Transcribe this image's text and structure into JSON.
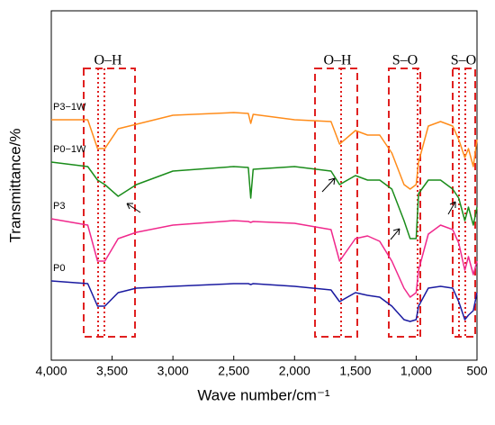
{
  "chart_data": {
    "type": "line",
    "xlabel": "Wave number/cm⁻¹",
    "ylabel": "Transmittance/%",
    "annotations": [
      "O–H",
      "O–H",
      "S–O",
      "S–O"
    ],
    "xlim": [
      4000,
      500
    ],
    "xticks": [
      {
        "value": 4000,
        "label": "4,000"
      },
      {
        "value": 3500,
        "label": "3,500"
      },
      {
        "value": 3000,
        "label": "3,000"
      },
      {
        "value": 2500,
        "label": "2,500"
      },
      {
        "value": 2000,
        "label": "2,000"
      },
      {
        "value": 1500,
        "label": "1,500"
      },
      {
        "value": 1000,
        "label": "1,000"
      },
      500
    ],
    "ylim": [
      0,
      388
    ],
    "x": [
      4000,
      3700,
      3620,
      3560,
      3450,
      3300,
      3000,
      2500,
      2380,
      2360,
      2340,
      2000,
      1700,
      1630,
      1500,
      1400,
      1300,
      1200,
      1100,
      1050,
      1000,
      980,
      900,
      800,
      700,
      650,
      600,
      570,
      530,
      500
    ],
    "series": [
      {
        "name": "P3−1W",
        "color": "#ff8c1a",
        "values": [
          267,
          267,
          235,
          235,
          257,
          262,
          272,
          275,
          274,
          263,
          273,
          267,
          265,
          240,
          255,
          250,
          250,
          230,
          195,
          190,
          195,
          220,
          260,
          265,
          260,
          245,
          225,
          235,
          215,
          245
        ]
      },
      {
        "name": "P0−1W",
        "color": "#1a8c1a",
        "values": [
          220,
          215,
          200,
          195,
          182,
          195,
          210,
          215,
          214,
          180,
          212,
          215,
          210,
          195,
          205,
          200,
          200,
          190,
          155,
          135,
          135,
          185,
          200,
          200,
          190,
          180,
          155,
          170,
          150,
          170
        ]
      },
      {
        "name": "P3",
        "color": "#f0288c",
        "values": [
          157,
          150,
          110,
          110,
          135,
          142,
          150,
          155,
          154,
          153,
          154,
          152,
          145,
          110,
          135,
          138,
          132,
          110,
          80,
          70,
          75,
          100,
          140,
          150,
          145,
          130,
          100,
          115,
          95,
          110
        ]
      },
      {
        "name": "P0",
        "color": "#1a1aa0",
        "values": [
          88,
          85,
          60,
          60,
          75,
          80,
          82,
          85,
          85,
          84,
          85,
          82,
          78,
          65,
          75,
          72,
          70,
          60,
          45,
          43,
          45,
          60,
          80,
          82,
          80,
          65,
          45,
          50,
          55,
          75
        ]
      }
    ]
  }
}
